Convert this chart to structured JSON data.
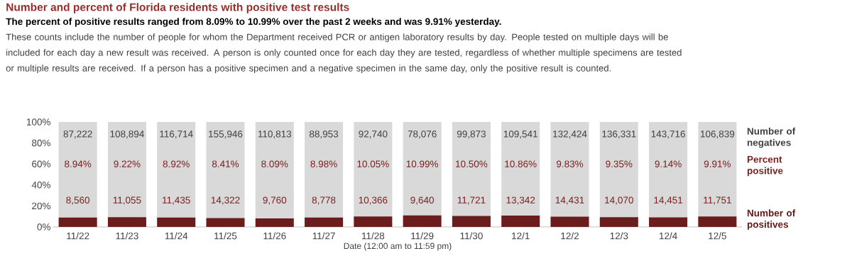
{
  "chart_data": {
    "type": "bar",
    "stacked": true,
    "title": "Number and percent of Florida residents with positive test results",
    "subtitle": "The percent of positive results ranged from 8.09% to 10.99% over the past 2 weeks and was 9.91% yesterday.",
    "xlabel": "Date (12:00 am to 11:59 pm)",
    "categories": [
      "11/22",
      "11/23",
      "11/24",
      "11/25",
      "11/26",
      "11/27",
      "11/28",
      "11/29",
      "11/30",
      "12/1",
      "12/2",
      "12/3",
      "12/4",
      "12/5"
    ],
    "series": [
      {
        "name": "Number of positives",
        "color": "#6b1c1c",
        "values": [
          8.94,
          9.22,
          8.92,
          8.41,
          8.09,
          8.98,
          10.05,
          10.99,
          10.5,
          10.86,
          9.83,
          9.35,
          9.14,
          9.91
        ]
      },
      {
        "name": "Number of negatives",
        "color": "#d9d9d9",
        "values": [
          91.06,
          90.78,
          91.08,
          91.59,
          91.91,
          91.02,
          89.95,
          89.01,
          89.5,
          89.14,
          90.17,
          90.65,
          90.86,
          90.09
        ]
      }
    ],
    "annotations": [
      "These counts include the number of people for whom the Department received PCR or antigen laboratory results by day. People tested on multiple days will be included for each day a new result was received. A person is only counted once for each day they are tested, regardless of whether multiple specimens are tested or multiple results are received. If a person has a positive specimen and a negative specimen in the same day, only the positive result is counted.",
      "Percent positive",
      "8.94%",
      "9.22%",
      "8.92%",
      "8.41%",
      "8.09%",
      "8.98%",
      "10.05%",
      "10.99%",
      "10.50%",
      "10.86%",
      "9.83%",
      "9.35%",
      "9.14%",
      "9.91%",
      "8,560",
      "11,055",
      "11,435",
      "14,322",
      "9,760",
      "8,778",
      "10,366",
      "9,640",
      "11,721",
      "13,342",
      "14,431",
      "14,070",
      "14,451",
      "11,751",
      "87,222",
      "108,894",
      "116,714",
      "155,946",
      "110,813",
      "88,953",
      "92,740",
      "78,076",
      "99,873",
      "109,541",
      "132,424",
      "136,331",
      "143,716",
      "106,839"
    ],
    "ylim": [
      0,
      100
    ],
    "yticks": [
      {
        "value": 0,
        "label": "0%"
      },
      {
        "value": 20,
        "label": "20%"
      },
      {
        "value": 40,
        "label": "40%"
      },
      {
        "value": 60,
        "label": "60%"
      },
      {
        "value": 80,
        "label": "80%"
      },
      {
        "value": 100,
        "label": "100%"
      }
    ],
    "legend": "right"
  }
}
